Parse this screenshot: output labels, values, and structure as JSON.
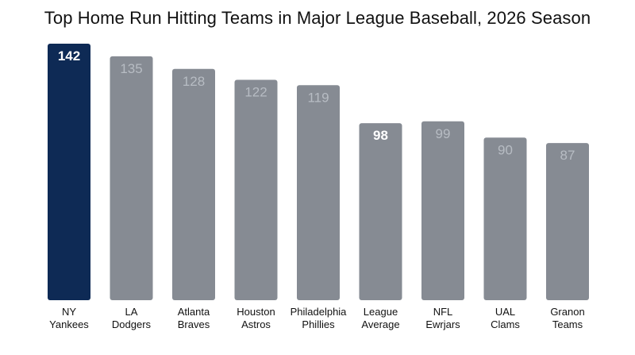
{
  "chart_data": {
    "type": "bar",
    "title": "Top Home Run Hitting Teams in Major League Baseball, 2026 Season",
    "xlabel": "",
    "ylabel": "",
    "ylim": [
      0,
      142
    ],
    "grid": false,
    "categories": [
      [
        "NY",
        "Yankees"
      ],
      [
        "LA",
        "Dodgers"
      ],
      [
        "Atlanta",
        "Braves"
      ],
      [
        "Houston",
        "Astros"
      ],
      [
        "Philadelphia",
        "Phillies"
      ],
      [
        "League",
        "Average"
      ],
      [
        "NFL",
        "Ewrjars"
      ],
      [
        "UAL",
        "Clams"
      ],
      [
        "Granon",
        "Teams"
      ]
    ],
    "values": [
      142,
      135,
      128,
      122,
      119,
      98,
      99,
      90,
      87
    ],
    "bar_colors": [
      "#0e2a55",
      "#868b93",
      "#868b93",
      "#868b93",
      "#868b93",
      "#868b93",
      "#868b93",
      "#868b93",
      "#868b93"
    ],
    "bold_labels": [
      true,
      false,
      false,
      false,
      false,
      true,
      false,
      false,
      false
    ]
  }
}
